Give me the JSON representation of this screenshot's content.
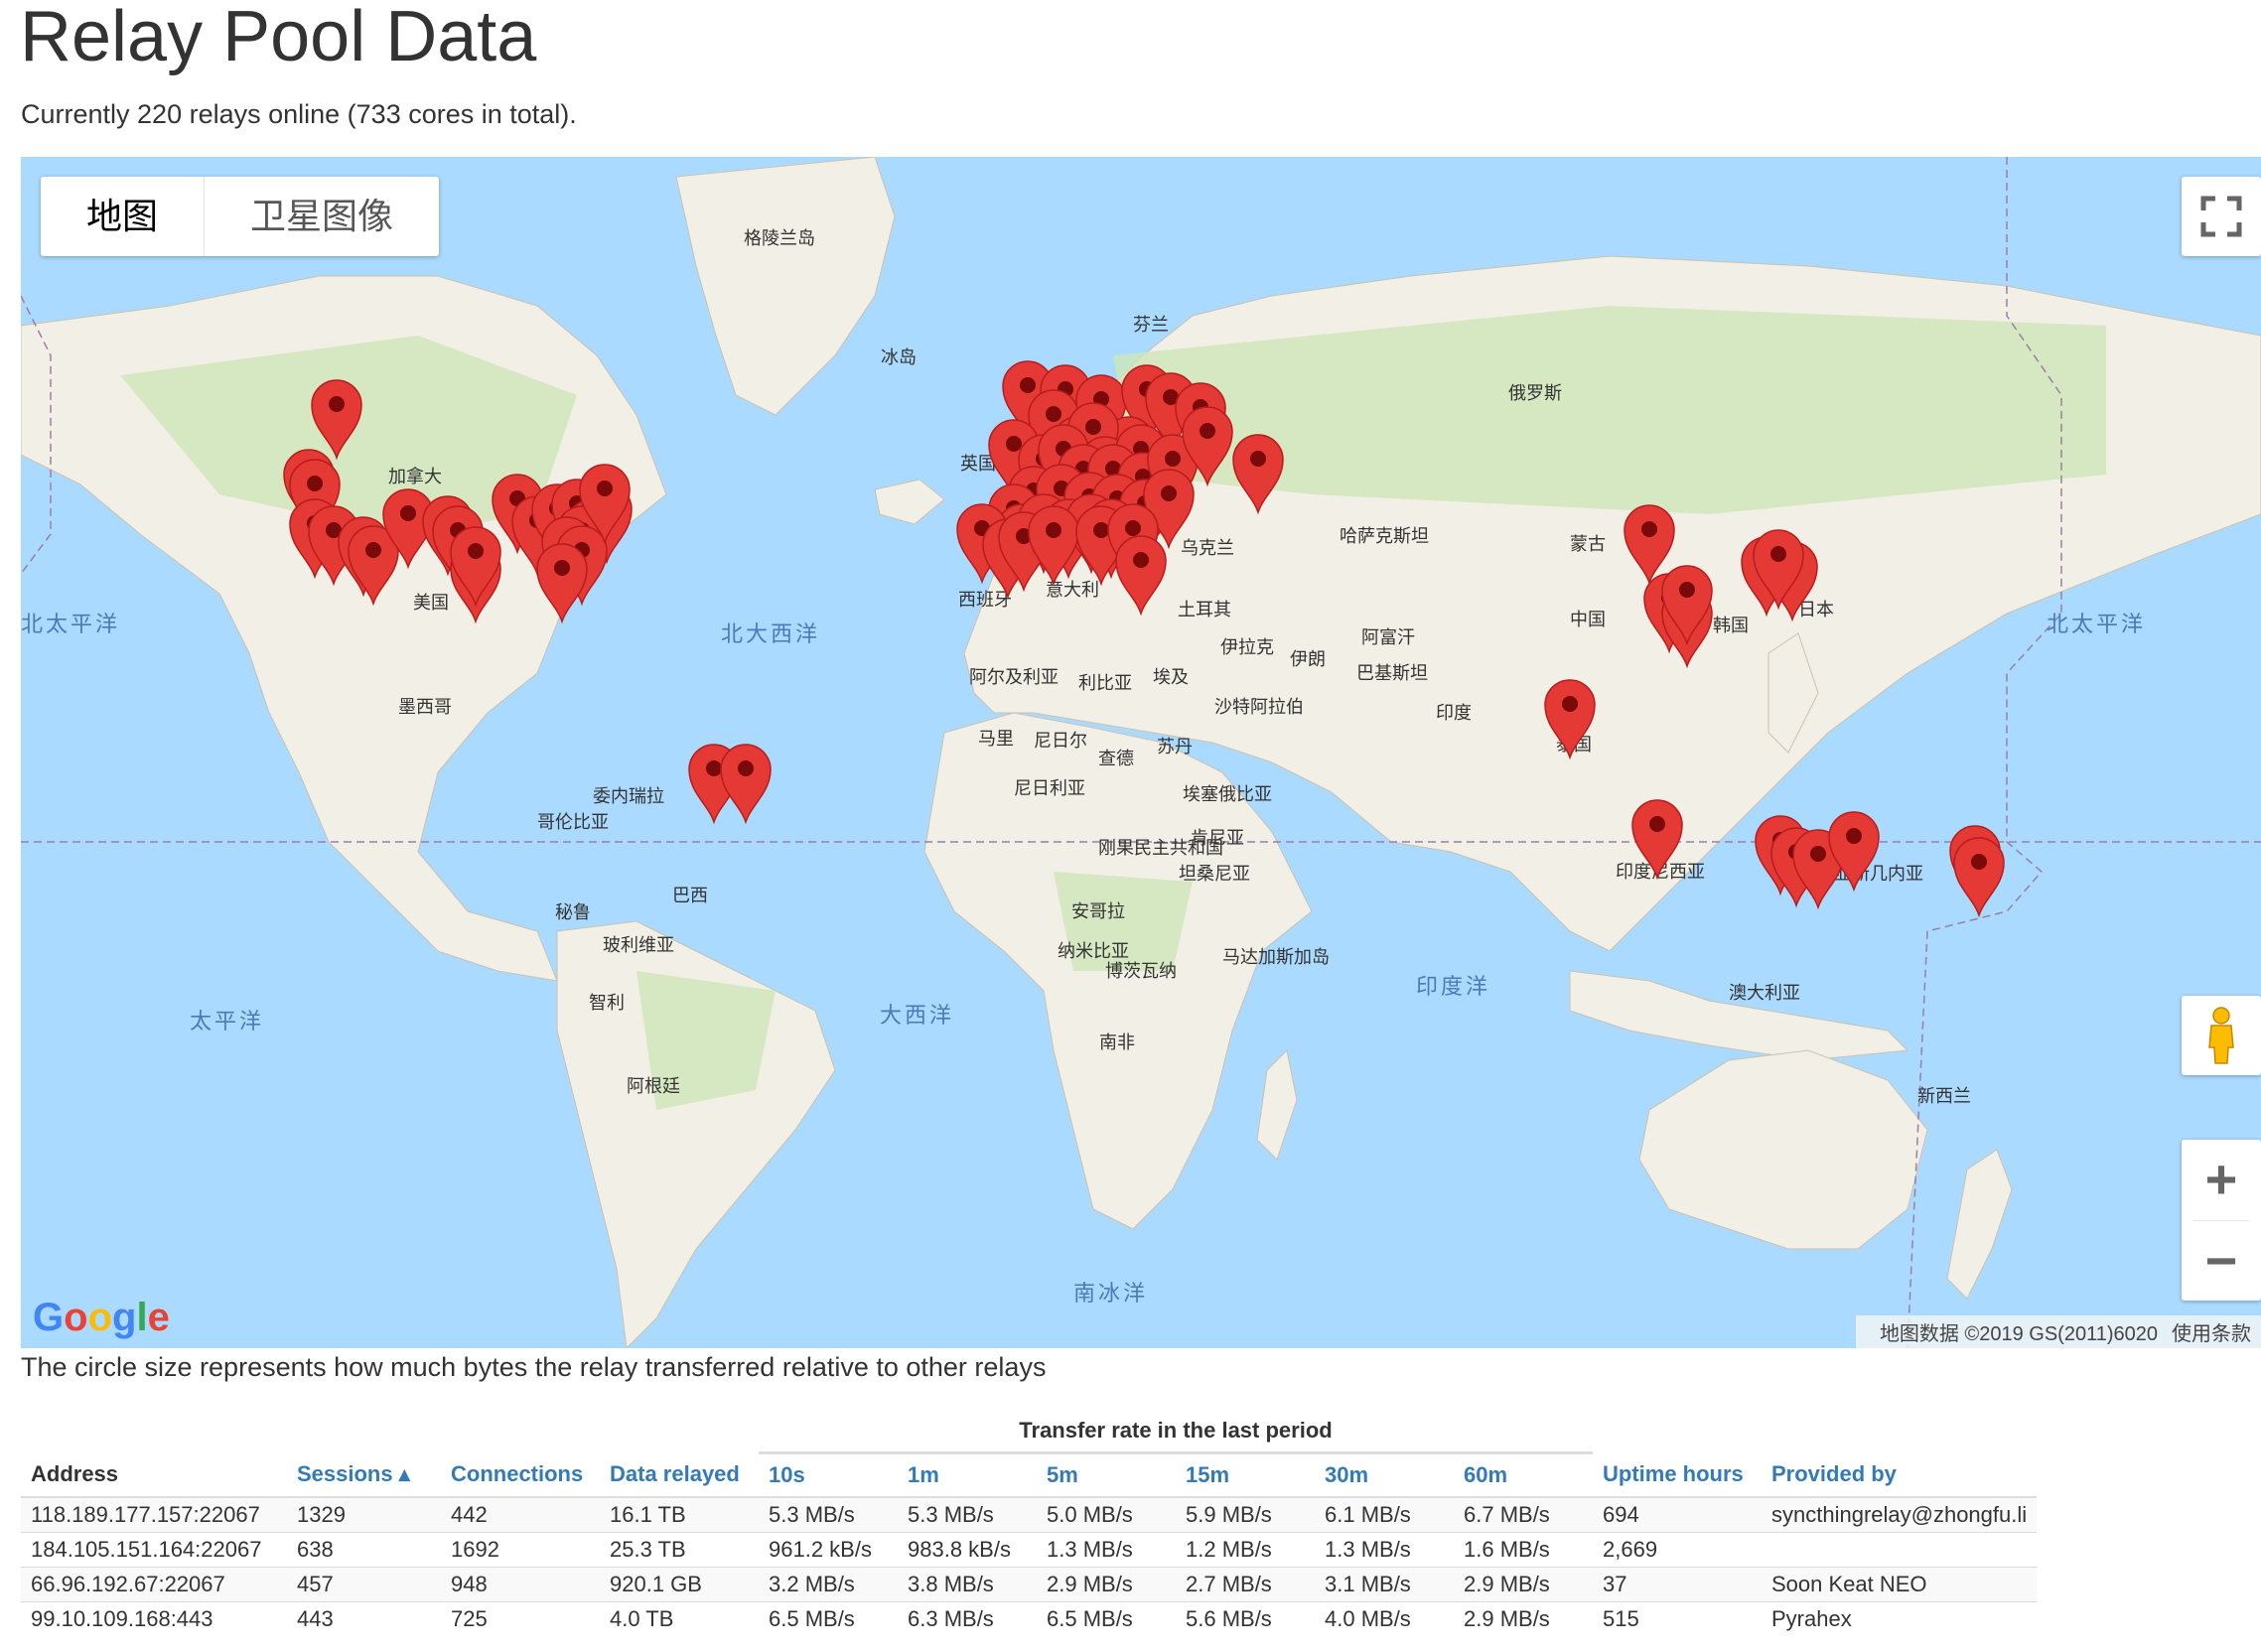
{
  "page": {
    "title": "Relay Pool Data",
    "subtitle": "Currently 220 relays online (733 cores in total).",
    "caption": "The circle size represents how much bytes the relay transferred relative to other relays"
  },
  "map": {
    "type_buttons": [
      "地图",
      "卫星图像"
    ],
    "logo": "Google",
    "attribution": "地图数据 ©2019 GS(2011)6020",
    "terms": "使用条款",
    "labels": {
      "greenland": "格陵兰岛",
      "iceland": "冰岛",
      "finland": "芬兰",
      "russia": "俄罗斯",
      "canada": "加拿大",
      "usa": "美国",
      "mexico": "墨西哥",
      "venezuela": "委内瑞拉",
      "colombia": "哥伦比亚",
      "peru": "秘鲁",
      "brazil": "巴西",
      "bolivia": "玻利维亚",
      "chile": "智利",
      "argentina": "阿根廷",
      "kazakhstan": "哈萨克斯坦",
      "mongolia": "蒙古",
      "china": "中国",
      "korea": "韩国",
      "japan": "日本",
      "turkey": "土耳其",
      "iraq": "伊拉克",
      "iran": "伊朗",
      "afghanistan": "阿富汗",
      "pakistan": "巴基斯坦",
      "india": "印度",
      "thailand": "泰国",
      "indonesia": "印度尼西亚",
      "png": "巴布亚新几内亚",
      "australia": "澳大利亚",
      "nz": "新西兰",
      "algeria": "阿尔及利亚",
      "libya": "利比亚",
      "egypt": "埃及",
      "saudi": "沙特阿拉伯",
      "mali": "马里",
      "niger": "尼日尔",
      "chad": "查德",
      "sudan": "苏丹",
      "nigeria": "尼日利亚",
      "ethiopia": "埃塞俄比亚",
      "drc": "刚果民主共和国",
      "kenya": "肯尼亚",
      "tanzania": "坦桑尼亚",
      "angola": "安哥拉",
      "namibia": "纳米比亚",
      "botswana": "博茨瓦纳",
      "southafrica": "南非",
      "madagascar": "马达加斯加岛",
      "spain": "西班牙",
      "italy": "意大利",
      "ukraine": "乌克兰",
      "uk": "英国",
      "n_pacific_l": "北太平洋",
      "n_pacific_r": "北太平洋",
      "n_atlantic": "北大西洋",
      "pacific": "太平洋",
      "atlantic": "大西洋",
      "indian": "印度洋",
      "southern": "南冰洋"
    }
  },
  "table": {
    "group_header": "Transfer rate in the last period",
    "columns": [
      "Address",
      "Sessions ▴",
      "Connections",
      "Data relayed",
      "10s",
      "1m",
      "5m",
      "15m",
      "30m",
      "60m",
      "Uptime hours",
      "Provided by"
    ],
    "rows": [
      [
        "118.189.177.157:22067",
        "1329",
        "442",
        "16.1 TB",
        "5.3 MB/s",
        "5.3 MB/s",
        "5.0 MB/s",
        "5.9 MB/s",
        "6.1 MB/s",
        "6.7 MB/s",
        "694",
        "syncthingrelay@zhongfu.li"
      ],
      [
        "184.105.151.164:22067",
        "638",
        "1692",
        "25.3 TB",
        "961.2 kB/s",
        "983.8 kB/s",
        "1.3 MB/s",
        "1.2 MB/s",
        "1.3 MB/s",
        "1.6 MB/s",
        "2,669",
        ""
      ],
      [
        "66.96.192.67:22067",
        "457",
        "948",
        "920.1 GB",
        "3.2 MB/s",
        "3.8 MB/s",
        "2.9 MB/s",
        "2.7 MB/s",
        "3.1 MB/s",
        "2.9 MB/s",
        "37",
        "Soon Keat NEO"
      ],
      [
        "99.10.109.168:443",
        "443",
        "725",
        "4.0 TB",
        "6.5 MB/s",
        "6.3 MB/s",
        "6.5 MB/s",
        "5.6 MB/s",
        "4.0 MB/s",
        "2.9 MB/s",
        "515",
        "Pyrahex"
      ]
    ]
  },
  "colors": {
    "water": "#aadaff",
    "land": "#f2efe6",
    "forest": "#cde6b8",
    "pin": "#e53935"
  }
}
